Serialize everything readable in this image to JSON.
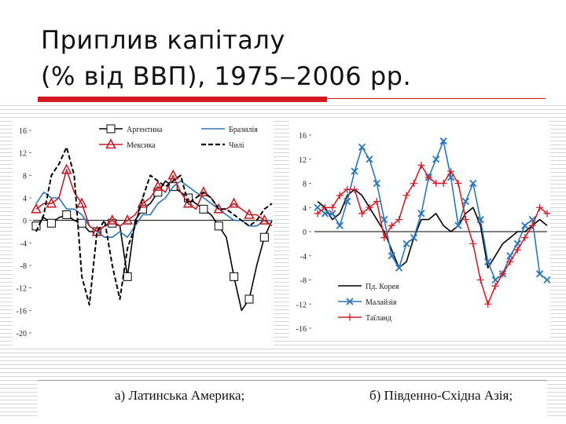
{
  "slide": {
    "title_line1": "Приплив капіталу",
    "title_line2": "(% від ВВП), 1975‒2006 рр.",
    "caption_a": "а) Латинська Америка;",
    "caption_b": "б) Південно-Східна Азія;"
  },
  "chart_data": [
    {
      "type": "line",
      "x": [
        1975,
        1976,
        1977,
        1978,
        1979,
        1980,
        1981,
        1982,
        1983,
        1984,
        1985,
        1986,
        1987,
        1988,
        1989,
        1990,
        1991,
        1992,
        1993,
        1994,
        1995,
        1996,
        1997,
        1998,
        1999,
        2000,
        2001,
        2002,
        2003,
        2004,
        2005,
        2006
      ],
      "xlim": [
        1975,
        2006
      ],
      "ylim": [
        -20,
        16
      ],
      "yticks": [
        16,
        12,
        8,
        4,
        0,
        -4,
        -8,
        -12,
        -16,
        -20
      ],
      "legend_position": "top",
      "series": [
        {
          "name": "Аргентина",
          "color": "#000000",
          "dash": "",
          "marker": "square",
          "values": [
            -1,
            0.5,
            -0.5,
            0.5,
            1,
            0,
            -0.5,
            -2,
            -2,
            -1,
            -0.5,
            -1,
            -10,
            0,
            2,
            3,
            5,
            7,
            6,
            5,
            4,
            3,
            2,
            1,
            -1,
            -3,
            -10,
            -16,
            -14,
            -8,
            -3,
            0
          ]
        },
        {
          "name": "Бразилія",
          "color": "#2e75b6",
          "dash": "",
          "marker": "none",
          "values": [
            3,
            5,
            4,
            4,
            2,
            2,
            1,
            -1,
            -2,
            -3,
            -3,
            -2,
            -3,
            -1,
            1,
            1,
            3,
            4,
            6,
            7,
            6,
            5,
            4,
            3,
            2,
            1,
            0,
            0,
            -1,
            -1,
            0,
            0
          ]
        },
        {
          "name": "Мексика",
          "color": "#c0202c",
          "dash": "",
          "marker": "triangle",
          "values": [
            2,
            3,
            3,
            4,
            9,
            5,
            3,
            -1,
            -2,
            -1,
            0,
            -1,
            0,
            1,
            3,
            4,
            6,
            5,
            8,
            5,
            3,
            2,
            5,
            4,
            2,
            2,
            3,
            2,
            1,
            1,
            0,
            -1
          ]
        },
        {
          "name": "Чилі",
          "color": "#000000",
          "dash": "6,3",
          "marker": "none",
          "values": [
            -2,
            1,
            8,
            10,
            13,
            8,
            -10,
            -15,
            -2,
            0,
            -8,
            -14,
            -5,
            -1,
            4,
            8,
            7,
            6,
            7,
            8,
            3,
            4,
            5,
            4,
            2,
            2,
            1,
            0,
            -1,
            0,
            2,
            3
          ]
        }
      ]
    },
    {
      "type": "line",
      "x": [
        1975,
        1976,
        1977,
        1978,
        1979,
        1980,
        1981,
        1982,
        1983,
        1984,
        1985,
        1986,
        1987,
        1988,
        1989,
        1990,
        1991,
        1992,
        1993,
        1994,
        1995,
        1996,
        1997,
        1998,
        1999,
        2000,
        2001,
        2002,
        2003,
        2004,
        2005,
        2006
      ],
      "xlim": [
        1975,
        2006
      ],
      "ylim": [
        -16,
        16
      ],
      "yticks": [
        16,
        12,
        8,
        4,
        0,
        -4,
        -8,
        -12,
        -16
      ],
      "legend_position": "bottom-left",
      "series": [
        {
          "name": "Пд. Корея",
          "color": "#000000",
          "dash": "",
          "marker": "none",
          "values": [
            5,
            4,
            2,
            3,
            6,
            7,
            6,
            4,
            2,
            0,
            -3,
            -6,
            -5,
            -1,
            2,
            2,
            3,
            1,
            0,
            1,
            3,
            4,
            1,
            -6,
            -4,
            -2,
            -1,
            0,
            0,
            1,
            2,
            1
          ]
        },
        {
          "name": "Малайзія",
          "color": "#2e75b6",
          "dash": "",
          "marker": "x",
          "values": [
            4,
            3,
            3,
            1,
            5,
            10,
            14,
            12,
            8,
            2,
            -4,
            -6,
            -2,
            -1,
            3,
            9,
            12,
            15,
            9,
            1,
            5,
            8,
            2,
            -5,
            -8,
            -7,
            -4,
            -2,
            1,
            2,
            -7,
            -8
          ]
        },
        {
          "name": "Таїланд",
          "color": "#d0202c",
          "dash": "",
          "marker": "plus",
          "values": [
            3,
            4,
            4,
            6,
            7,
            7,
            3,
            4,
            5,
            -1,
            1,
            2,
            6,
            8,
            11,
            9,
            8,
            8,
            10,
            8,
            2,
            -2,
            -8,
            -12,
            -9,
            -7,
            -5,
            -3,
            -1,
            1,
            4,
            3
          ]
        }
      ]
    }
  ]
}
